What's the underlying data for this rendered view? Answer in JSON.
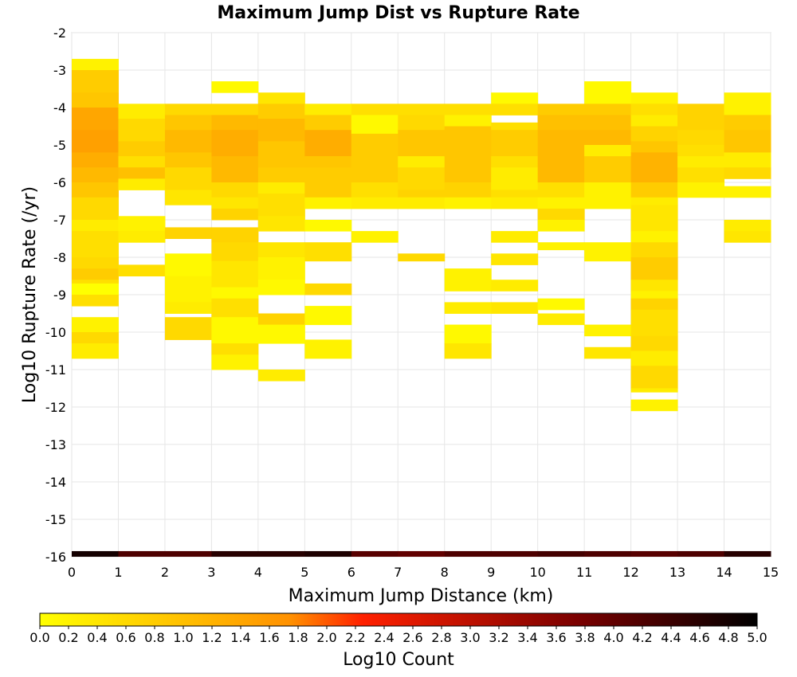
{
  "chart_data": {
    "type": "heatmap",
    "title": "Maximum Jump Dist vs Rupture Rate",
    "xlabel": "Maximum Jump Distance (km)",
    "ylabel": "Log10 Rupture Rate (/yr)",
    "xlim": [
      0,
      15
    ],
    "ylim": [
      -16,
      -2
    ],
    "x_ticks": [
      "0",
      "1",
      "2",
      "3",
      "4",
      "5",
      "6",
      "7",
      "8",
      "9",
      "10",
      "11",
      "12",
      "13",
      "14",
      "15"
    ],
    "y_ticks": [
      "-2",
      "-3",
      "-4",
      "-5",
      "-6",
      "-7",
      "-8",
      "-9",
      "-10",
      "-11",
      "-12",
      "-13",
      "-14",
      "-15",
      "-16"
    ],
    "bin_x_width": 1,
    "bin_y_height": 0.2857,
    "colorscale": {
      "label": "Log10 Count",
      "min": 0.0,
      "max": 5.0,
      "colors": [
        "#ffff00",
        "#ff7f00",
        "#ff0000",
        "#7f0000",
        "#000000"
      ],
      "ticks": [
        "0.0",
        "0.2",
        "0.4",
        "0.6",
        "0.8",
        "1.0",
        "1.2",
        "1.4",
        "1.6",
        "1.8",
        "2.0",
        "2.2",
        "2.4",
        "2.6",
        "2.8",
        "3.0",
        "3.2",
        "3.4",
        "3.6",
        "3.8",
        "4.0",
        "4.2",
        "4.4",
        "4.6",
        "4.8",
        "5.0"
      ]
    },
    "grid": true,
    "columns": [
      {
        "x": 0,
        "cells": [
          {
            "lo": -3.0,
            "hi": -2.7,
            "v": 0.2
          },
          {
            "lo": -3.6,
            "hi": -3.0,
            "v": 0.8
          },
          {
            "lo": -4.0,
            "hi": -3.6,
            "v": 0.9
          },
          {
            "lo": -4.6,
            "hi": -4.0,
            "v": 1.4
          },
          {
            "lo": -5.2,
            "hi": -4.6,
            "v": 1.5
          },
          {
            "lo": -5.6,
            "hi": -5.2,
            "v": 1.3
          },
          {
            "lo": -6.0,
            "hi": -5.6,
            "v": 1.1
          },
          {
            "lo": -6.4,
            "hi": -6.0,
            "v": 0.9
          },
          {
            "lo": -7.0,
            "hi": -6.4,
            "v": 0.6
          },
          {
            "lo": -7.3,
            "hi": -7.0,
            "v": 0.3
          },
          {
            "lo": -8.0,
            "hi": -7.3,
            "v": 0.5
          },
          {
            "lo": -8.3,
            "hi": -8.0,
            "v": 0.6
          },
          {
            "lo": -8.7,
            "hi": -8.3,
            "v": 0.8
          },
          {
            "lo": -8.7,
            "hi": -8.6,
            "v": 0.5
          },
          {
            "lo": -9.0,
            "hi": -8.7,
            "v": 0.0
          },
          {
            "lo": -9.3,
            "hi": -9.0,
            "v": 0.5
          },
          {
            "lo": -10.0,
            "hi": -9.6,
            "v": 0.2
          },
          {
            "lo": -10.3,
            "hi": -10.0,
            "v": 0.6
          },
          {
            "lo": -10.7,
            "hi": -10.3,
            "v": 0.3
          }
        ]
      },
      {
        "x": 1,
        "cells": [
          {
            "lo": -4.3,
            "hi": -3.9,
            "v": 0.3
          },
          {
            "lo": -4.9,
            "hi": -4.3,
            "v": 0.6
          },
          {
            "lo": -5.3,
            "hi": -4.9,
            "v": 0.8
          },
          {
            "lo": -5.6,
            "hi": -5.3,
            "v": 0.5
          },
          {
            "lo": -5.9,
            "hi": -5.6,
            "v": 1.0
          },
          {
            "lo": -6.2,
            "hi": -5.9,
            "v": 0.3
          },
          {
            "lo": -7.3,
            "hi": -6.9,
            "v": 0.2
          },
          {
            "lo": -7.6,
            "hi": -7.3,
            "v": 0.3
          },
          {
            "lo": -8.5,
            "hi": -8.2,
            "v": 0.5
          }
        ]
      },
      {
        "x": 2,
        "cells": [
          {
            "lo": -4.2,
            "hi": -3.9,
            "v": 0.6
          },
          {
            "lo": -4.6,
            "hi": -4.2,
            "v": 0.9
          },
          {
            "lo": -5.2,
            "hi": -4.6,
            "v": 1.1
          },
          {
            "lo": -5.6,
            "hi": -5.2,
            "v": 0.9
          },
          {
            "lo": -6.2,
            "hi": -5.6,
            "v": 0.6
          },
          {
            "lo": -6.6,
            "hi": -6.2,
            "v": 0.4
          },
          {
            "lo": -7.5,
            "hi": -7.2,
            "v": 0.7
          },
          {
            "lo": -8.5,
            "hi": -7.9,
            "v": 0.1
          },
          {
            "lo": -9.2,
            "hi": -8.5,
            "v": 0.2
          },
          {
            "lo": -9.5,
            "hi": -9.2,
            "v": 0.3
          },
          {
            "lo": -10.2,
            "hi": -9.6,
            "v": 0.6
          }
        ]
      },
      {
        "x": 3,
        "cells": [
          {
            "lo": -3.6,
            "hi": -3.3,
            "v": 0.1
          },
          {
            "lo": -4.2,
            "hi": -3.9,
            "v": 0.6
          },
          {
            "lo": -4.6,
            "hi": -4.2,
            "v": 1.1
          },
          {
            "lo": -5.3,
            "hi": -4.6,
            "v": 1.3
          },
          {
            "lo": -6.0,
            "hi": -5.3,
            "v": 1.1
          },
          {
            "lo": -6.4,
            "hi": -6.0,
            "v": 0.6
          },
          {
            "lo": -6.7,
            "hi": -6.4,
            "v": 0.4
          },
          {
            "lo": -7.0,
            "hi": -6.7,
            "v": 0.7
          },
          {
            "lo": -7.6,
            "hi": -7.2,
            "v": 0.7
          },
          {
            "lo": -8.1,
            "hi": -7.6,
            "v": 0.6
          },
          {
            "lo": -8.8,
            "hi": -8.1,
            "v": 0.4
          },
          {
            "lo": -9.1,
            "hi": -8.8,
            "v": 0.1
          },
          {
            "lo": -9.6,
            "hi": -9.1,
            "v": 0.5
          },
          {
            "lo": -10.3,
            "hi": -9.6,
            "v": 0.1
          },
          {
            "lo": -10.6,
            "hi": -10.3,
            "v": 0.5
          },
          {
            "lo": -11.0,
            "hi": -10.6,
            "v": 0.2
          }
        ]
      },
      {
        "x": 4,
        "cells": [
          {
            "lo": -3.9,
            "hi": -3.6,
            "v": 0.4
          },
          {
            "lo": -4.3,
            "hi": -3.9,
            "v": 0.8
          },
          {
            "lo": -4.9,
            "hi": -4.3,
            "v": 1.1
          },
          {
            "lo": -5.6,
            "hi": -4.9,
            "v": 0.9
          },
          {
            "lo": -6.0,
            "hi": -5.6,
            "v": 0.8
          },
          {
            "lo": -6.3,
            "hi": -6.0,
            "v": 0.3
          },
          {
            "lo": -6.9,
            "hi": -6.3,
            "v": 0.5
          },
          {
            "lo": -7.3,
            "hi": -6.9,
            "v": 0.4
          },
          {
            "lo": -8.0,
            "hi": -7.6,
            "v": 0.4
          },
          {
            "lo": -8.6,
            "hi": -8.0,
            "v": 0.2
          },
          {
            "lo": -9.0,
            "hi": -8.6,
            "v": 0.1
          },
          {
            "lo": -9.8,
            "hi": -9.5,
            "v": 0.7
          },
          {
            "lo": -10.3,
            "hi": -9.8,
            "v": 0.1
          },
          {
            "lo": -11.3,
            "hi": -11.0,
            "v": 0.3
          }
        ]
      },
      {
        "x": 5,
        "cells": [
          {
            "lo": -4.2,
            "hi": -3.9,
            "v": 0.3
          },
          {
            "lo": -4.6,
            "hi": -4.2,
            "v": 0.8
          },
          {
            "lo": -5.3,
            "hi": -4.6,
            "v": 1.3
          },
          {
            "lo": -5.6,
            "hi": -5.3,
            "v": 0.9
          },
          {
            "lo": -6.0,
            "hi": -5.6,
            "v": 0.8
          },
          {
            "lo": -6.4,
            "hi": -6.0,
            "v": 0.8
          },
          {
            "lo": -6.7,
            "hi": -6.4,
            "v": 0.2
          },
          {
            "lo": -7.3,
            "hi": -7.0,
            "v": 0.1
          },
          {
            "lo": -8.1,
            "hi": -7.6,
            "v": 0.5
          },
          {
            "lo": -9.0,
            "hi": -8.7,
            "v": 0.6
          },
          {
            "lo": -9.8,
            "hi": -9.3,
            "v": 0.1
          },
          {
            "lo": -10.7,
            "hi": -10.2,
            "v": 0.2
          }
        ]
      },
      {
        "x": 6,
        "cells": [
          {
            "lo": -4.2,
            "hi": -3.9,
            "v": 0.5
          },
          {
            "lo": -4.7,
            "hi": -4.2,
            "v": 0.1
          },
          {
            "lo": -5.3,
            "hi": -4.7,
            "v": 0.8
          },
          {
            "lo": -6.0,
            "hi": -5.3,
            "v": 0.8
          },
          {
            "lo": -6.4,
            "hi": -6.0,
            "v": 0.5
          },
          {
            "lo": -6.7,
            "hi": -6.4,
            "v": 0.3
          },
          {
            "lo": -7.6,
            "hi": -7.3,
            "v": 0.2
          }
        ]
      },
      {
        "x": 7,
        "cells": [
          {
            "lo": -4.2,
            "hi": -3.9,
            "v": 0.5
          },
          {
            "lo": -4.6,
            "hi": -4.2,
            "v": 0.6
          },
          {
            "lo": -5.3,
            "hi": -4.6,
            "v": 0.9
          },
          {
            "lo": -5.6,
            "hi": -5.3,
            "v": 0.3
          },
          {
            "lo": -6.2,
            "hi": -5.6,
            "v": 0.6
          },
          {
            "lo": -6.4,
            "hi": -6.2,
            "v": 0.7
          },
          {
            "lo": -6.7,
            "hi": -6.4,
            "v": 0.3
          },
          {
            "lo": -8.1,
            "hi": -7.9,
            "v": 0.6
          }
        ]
      },
      {
        "x": 8,
        "cells": [
          {
            "lo": -4.2,
            "hi": -3.9,
            "v": 0.5
          },
          {
            "lo": -4.5,
            "hi": -4.2,
            "v": 0.2
          },
          {
            "lo": -5.3,
            "hi": -4.5,
            "v": 0.9
          },
          {
            "lo": -6.0,
            "hi": -5.3,
            "v": 0.9
          },
          {
            "lo": -6.4,
            "hi": -6.0,
            "v": 0.7
          },
          {
            "lo": -6.7,
            "hi": -6.4,
            "v": 0.2
          },
          {
            "lo": -8.9,
            "hi": -8.3,
            "v": 0.2
          },
          {
            "lo": -9.5,
            "hi": -9.2,
            "v": 0.3
          },
          {
            "lo": -10.3,
            "hi": -9.8,
            "v": 0.1
          },
          {
            "lo": -10.7,
            "hi": -10.3,
            "v": 0.4
          }
        ]
      },
      {
        "x": 9,
        "cells": [
          {
            "lo": -3.9,
            "hi": -3.6,
            "v": 0.1
          },
          {
            "lo": -4.2,
            "hi": -3.9,
            "v": 0.5
          },
          {
            "lo": -4.6,
            "hi": -4.4,
            "v": 0.5
          },
          {
            "lo": -5.3,
            "hi": -4.6,
            "v": 0.8
          },
          {
            "lo": -5.6,
            "hi": -5.3,
            "v": 0.5
          },
          {
            "lo": -6.2,
            "hi": -5.6,
            "v": 0.3
          },
          {
            "lo": -6.4,
            "hi": -6.2,
            "v": 0.5
          },
          {
            "lo": -6.7,
            "hi": -6.4,
            "v": 0.3
          },
          {
            "lo": -7.6,
            "hi": -7.3,
            "v": 0.3
          },
          {
            "lo": -8.2,
            "hi": -7.9,
            "v": 0.4
          },
          {
            "lo": -8.9,
            "hi": -8.6,
            "v": 0.3
          },
          {
            "lo": -9.5,
            "hi": -9.2,
            "v": 0.4
          }
        ]
      },
      {
        "x": 10,
        "cells": [
          {
            "lo": -4.2,
            "hi": -3.9,
            "v": 0.8
          },
          {
            "lo": -4.6,
            "hi": -4.2,
            "v": 1.0
          },
          {
            "lo": -5.2,
            "hi": -4.6,
            "v": 1.1
          },
          {
            "lo": -6.0,
            "hi": -5.2,
            "v": 1.1
          },
          {
            "lo": -6.4,
            "hi": -6.0,
            "v": 0.5
          },
          {
            "lo": -6.7,
            "hi": -6.4,
            "v": 0.2
          },
          {
            "lo": -7.0,
            "hi": -6.7,
            "v": 0.6
          },
          {
            "lo": -7.3,
            "hi": -7.0,
            "v": 0.2
          },
          {
            "lo": -7.8,
            "hi": -7.6,
            "v": 0.2
          },
          {
            "lo": -9.4,
            "hi": -9.1,
            "v": 0.1
          },
          {
            "lo": -9.8,
            "hi": -9.5,
            "v": 0.3
          }
        ]
      },
      {
        "x": 11,
        "cells": [
          {
            "lo": -3.9,
            "hi": -3.3,
            "v": 0.1
          },
          {
            "lo": -4.2,
            "hi": -3.9,
            "v": 0.8
          },
          {
            "lo": -4.6,
            "hi": -4.2,
            "v": 1.0
          },
          {
            "lo": -5.0,
            "hi": -4.6,
            "v": 1.1
          },
          {
            "lo": -5.3,
            "hi": -5.0,
            "v": 0.3
          },
          {
            "lo": -6.0,
            "hi": -5.3,
            "v": 0.8
          },
          {
            "lo": -6.7,
            "hi": -6.0,
            "v": 0.2
          },
          {
            "lo": -8.1,
            "hi": -7.6,
            "v": 0.2
          },
          {
            "lo": -10.1,
            "hi": -9.8,
            "v": 0.2
          },
          {
            "lo": -10.7,
            "hi": -10.4,
            "v": 0.4
          }
        ]
      },
      {
        "x": 12,
        "cells": [
          {
            "lo": -3.9,
            "hi": -3.6,
            "v": 0.2
          },
          {
            "lo": -4.2,
            "hi": -3.9,
            "v": 0.5
          },
          {
            "lo": -4.5,
            "hi": -4.2,
            "v": 0.3
          },
          {
            "lo": -4.9,
            "hi": -4.5,
            "v": 0.7
          },
          {
            "lo": -5.2,
            "hi": -4.9,
            "v": 0.9
          },
          {
            "lo": -6.0,
            "hi": -5.2,
            "v": 1.2
          },
          {
            "lo": -6.4,
            "hi": -6.0,
            "v": 0.8
          },
          {
            "lo": -6.6,
            "hi": -6.4,
            "v": 0.3
          },
          {
            "lo": -7.3,
            "hi": -6.6,
            "v": 0.4
          },
          {
            "lo": -7.6,
            "hi": -7.3,
            "v": 0.2
          },
          {
            "lo": -8.0,
            "hi": -7.6,
            "v": 0.6
          },
          {
            "lo": -8.6,
            "hi": -8.0,
            "v": 0.8
          },
          {
            "lo": -8.9,
            "hi": -8.6,
            "v": 0.4
          },
          {
            "lo": -9.1,
            "hi": -8.9,
            "v": 0.2
          },
          {
            "lo": -9.4,
            "hi": -9.1,
            "v": 0.7
          },
          {
            "lo": -10.1,
            "hi": -9.4,
            "v": 0.5
          },
          {
            "lo": -10.5,
            "hi": -10.1,
            "v": 0.6
          },
          {
            "lo": -10.9,
            "hi": -10.5,
            "v": 0.3
          },
          {
            "lo": -11.5,
            "hi": -10.9,
            "v": 0.6
          },
          {
            "lo": -11.6,
            "hi": -11.5,
            "v": 0.3
          },
          {
            "lo": -12.1,
            "hi": -11.8,
            "v": 0.2
          }
        ]
      },
      {
        "x": 13,
        "cells": [
          {
            "lo": -4.6,
            "hi": -3.9,
            "v": 0.7
          },
          {
            "lo": -5.0,
            "hi": -4.6,
            "v": 0.6
          },
          {
            "lo": -5.3,
            "hi": -5.0,
            "v": 0.5
          },
          {
            "lo": -5.6,
            "hi": -5.3,
            "v": 0.3
          },
          {
            "lo": -6.0,
            "hi": -5.6,
            "v": 0.5
          },
          {
            "lo": -6.4,
            "hi": -6.0,
            "v": 0.2
          }
        ]
      },
      {
        "x": 14,
        "cells": [
          {
            "lo": -4.2,
            "hi": -3.6,
            "v": 0.2
          },
          {
            "lo": -4.6,
            "hi": -4.2,
            "v": 0.8
          },
          {
            "lo": -5.2,
            "hi": -4.6,
            "v": 0.9
          },
          {
            "lo": -5.6,
            "hi": -5.2,
            "v": 0.3
          },
          {
            "lo": -5.9,
            "hi": -5.6,
            "v": 0.6
          },
          {
            "lo": -6.4,
            "hi": -6.1,
            "v": 0.2
          },
          {
            "lo": -7.3,
            "hi": -7.0,
            "v": 0.3
          },
          {
            "lo": -7.6,
            "hi": -7.3,
            "v": 0.4
          }
        ]
      }
    ],
    "bottom_row": {
      "lo": -16.0,
      "hi": -15.85,
      "values": [
        4.8,
        4.2,
        4.2,
        4.6,
        4.6,
        4.7,
        4.1,
        4.0,
        4.2,
        4.2,
        4.3,
        4.2,
        4.1,
        4.2,
        4.6
      ]
    }
  }
}
